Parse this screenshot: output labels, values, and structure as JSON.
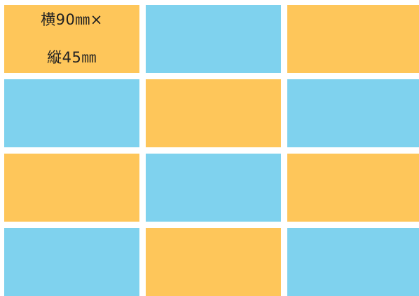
{
  "colors": {
    "orange": "#FEC65A",
    "blue": "#7FD2EE"
  },
  "grid": {
    "rows": [
      {
        "tiles": [
          {
            "color": "orange",
            "label_lines": [
              "横90㎜×",
              "縦45㎜"
            ]
          },
          {
            "color": "blue"
          },
          {
            "color": "orange"
          }
        ]
      },
      {
        "tiles": [
          {
            "color": "blue"
          },
          {
            "color": "orange"
          },
          {
            "color": "blue"
          }
        ]
      },
      {
        "tiles": [
          {
            "color": "orange"
          },
          {
            "color": "blue"
          },
          {
            "color": "orange"
          }
        ]
      },
      {
        "tiles": [
          {
            "color": "blue"
          },
          {
            "color": "orange"
          },
          {
            "color": "blue"
          }
        ]
      }
    ]
  }
}
